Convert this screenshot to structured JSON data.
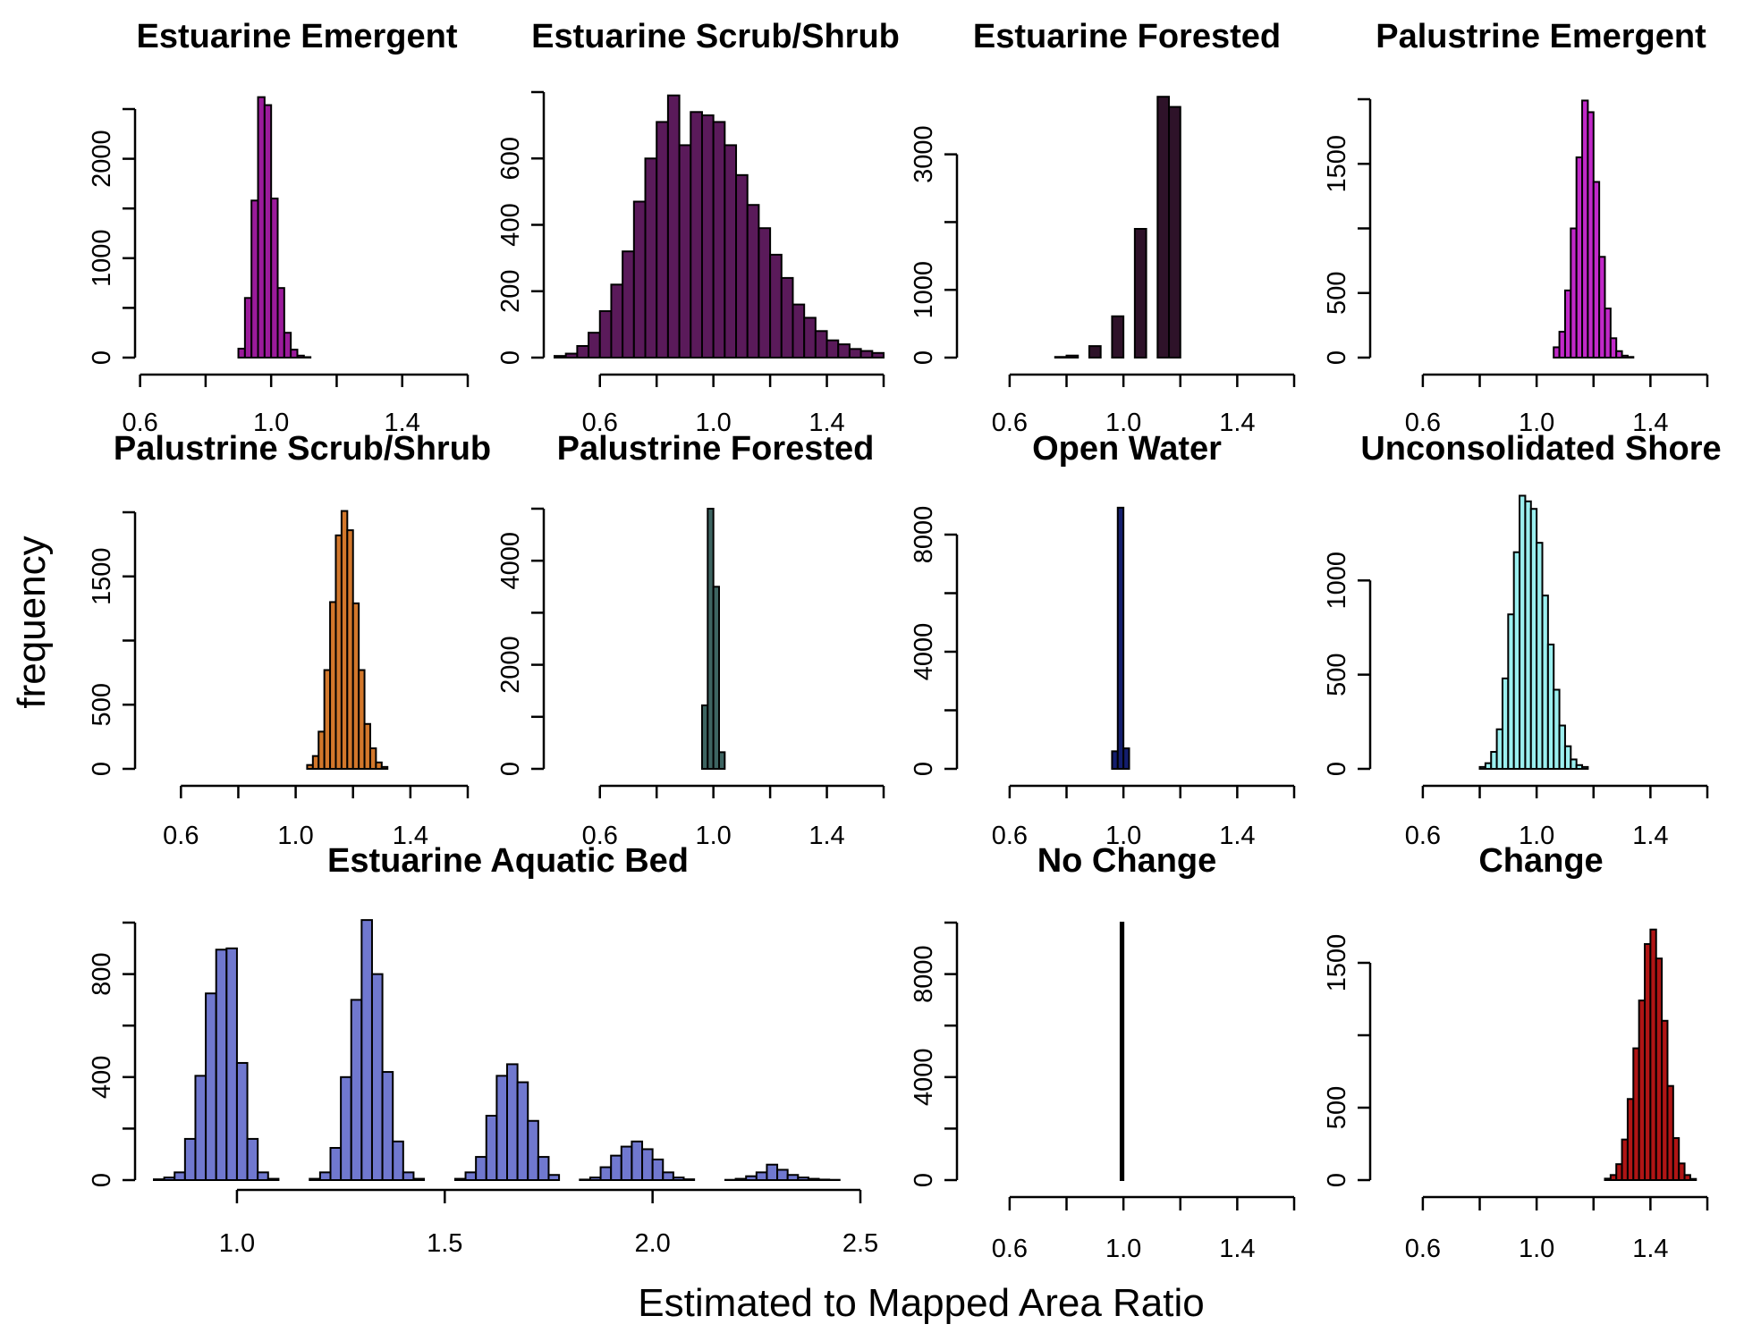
{
  "figure": {
    "ylabel": "frequency",
    "xlabel": "Estimated to Mapped Area Ratio"
  },
  "chart_data": [
    {
      "type": "bar",
      "title": "Estuarine Emergent",
      "color": "#9B1B9B",
      "bin_width": 0.02,
      "x_start": 0.44,
      "xlim": [
        0.5,
        1.6
      ],
      "xticks": [
        0.6,
        0.8,
        1.0,
        1.2,
        1.4,
        1.6
      ],
      "xtick_labels": [
        "0.6",
        "1.0",
        "1.4"
      ],
      "xtick_label_values": [
        0.6,
        1.0,
        1.4
      ],
      "ylim": [
        0,
        2500
      ],
      "yticks": [
        0,
        500,
        1000,
        1500,
        2000,
        2500
      ],
      "ytick_labels": [
        "0",
        "1000",
        "2000"
      ],
      "ytick_label_values": [
        0,
        1000,
        2000
      ],
      "values": [
        0,
        0,
        0,
        0,
        0,
        0,
        0,
        0,
        0,
        0,
        0,
        0,
        0,
        0,
        0,
        0,
        0,
        0,
        0,
        0,
        0,
        0,
        0,
        90,
        600,
        1580,
        2620,
        2540,
        1600,
        700,
        250,
        80,
        20,
        5,
        0,
        0,
        0,
        0,
        0,
        0,
        0,
        0,
        0,
        0,
        0,
        0,
        0,
        0,
        0,
        0,
        0,
        0,
        0,
        0,
        0,
        0,
        0,
        0
      ]
    },
    {
      "type": "bar",
      "title": "Estuarine Scrub/Shrub",
      "color": "#5A1A5A",
      "bin_width": 0.04,
      "x_start": 0.44,
      "xlim": [
        0.44,
        1.6
      ],
      "xticks": [
        0.6,
        0.8,
        1.0,
        1.2,
        1.4,
        1.6
      ],
      "xtick_labels": [
        "0.6",
        "1.0",
        "1.4"
      ],
      "xtick_label_values": [
        0.6,
        1.0,
        1.4
      ],
      "ylim": [
        0,
        800
      ],
      "yticks": [
        0,
        200,
        400,
        600,
        800
      ],
      "ytick_labels": [
        "0",
        "200",
        "400",
        "600"
      ],
      "ytick_label_values": [
        0,
        200,
        400,
        600
      ],
      "values": [
        5,
        12,
        35,
        75,
        140,
        220,
        320,
        470,
        600,
        710,
        790,
        640,
        740,
        730,
        710,
        640,
        550,
        460,
        390,
        310,
        240,
        160,
        120,
        80,
        52,
        40,
        26,
        20,
        14,
        10,
        6,
        4,
        2,
        1,
        1,
        1,
        0,
        0,
        0,
        0,
        0,
        0,
        0,
        0,
        0,
        0,
        0,
        0,
        0,
        0,
        0,
        0,
        0,
        0,
        0,
        0,
        0,
        0
      ]
    },
    {
      "type": "bar",
      "title": "Estuarine Forested",
      "color": "#2E1229",
      "bin_width": 0.04,
      "x_start": 0.44,
      "xlim": [
        0.44,
        1.6
      ],
      "xticks": [
        0.6,
        0.8,
        1.0,
        1.2,
        1.4,
        1.6
      ],
      "xtick_labels": [
        "0.6",
        "1.0",
        "1.4"
      ],
      "xtick_label_values": [
        0.6,
        1.0,
        1.4
      ],
      "ylim": [
        0,
        3800
      ],
      "yticks": [
        0,
        1000,
        2000,
        3000
      ],
      "ytick_labels": [
        "0",
        "1000",
        "3000"
      ],
      "ytick_label_values": [
        0,
        1000,
        3000
      ],
      "values": [
        0,
        0,
        0,
        0,
        0,
        0,
        0,
        0,
        10,
        30,
        0,
        170,
        0,
        610,
        0,
        1900,
        0,
        3850,
        3700,
        0,
        0,
        0,
        0,
        0,
        0,
        0,
        0,
        0,
        0,
        0,
        0,
        0,
        0,
        0,
        0,
        0,
        0,
        0,
        0,
        0,
        0,
        0,
        0,
        0,
        0,
        0,
        0,
        0,
        0,
        0,
        0,
        0,
        0,
        0,
        0,
        0,
        0,
        0
      ]
    },
    {
      "type": "bar",
      "title": "Palustrine Emergent",
      "color": "#C129C8",
      "bin_width": 0.02,
      "x_start": 0.44,
      "xlim": [
        0.5,
        1.6
      ],
      "xticks": [
        0.6,
        0.8,
        1.0,
        1.2,
        1.4,
        1.6
      ],
      "xtick_labels": [
        "0.6",
        "1.0",
        "1.4"
      ],
      "xtick_label_values": [
        0.6,
        1.0,
        1.4
      ],
      "ylim": [
        0,
        2000
      ],
      "yticks": [
        0,
        500,
        1000,
        1500,
        2000
      ],
      "ytick_labels": [
        "0",
        "500",
        "1500"
      ],
      "ytick_label_values": [
        0,
        500,
        1500
      ],
      "values": [
        0,
        0,
        0,
        0,
        0,
        0,
        0,
        0,
        0,
        0,
        0,
        0,
        0,
        0,
        0,
        0,
        0,
        0,
        0,
        0,
        0,
        0,
        0,
        0,
        0,
        0,
        0,
        0,
        0,
        0,
        0,
        80,
        200,
        520,
        1000,
        1550,
        1990,
        1900,
        1360,
        780,
        380,
        150,
        50,
        15,
        5,
        0,
        0,
        0,
        0,
        0,
        0,
        0,
        0,
        0,
        0,
        0,
        0,
        0
      ]
    },
    {
      "type": "bar",
      "title": "Palustrine Scrub/Shrub",
      "color": "#D2772B",
      "bin_width": 0.02,
      "x_start": 0.44,
      "xlim": [
        0.5,
        1.6
      ],
      "xticks": [
        0.6,
        0.8,
        1.0,
        1.2,
        1.4,
        1.6
      ],
      "xtick_labels": [
        "0.6",
        "1.0",
        "1.4"
      ],
      "xtick_label_values": [
        0.6,
        1.0,
        1.4
      ],
      "ylim": [
        0,
        2000
      ],
      "yticks": [
        0,
        500,
        1000,
        1500,
        2000
      ],
      "ytick_labels": [
        "0",
        "500",
        "1500"
      ],
      "ytick_label_values": [
        0,
        500,
        1500
      ],
      "values": [
        0,
        0,
        0,
        0,
        0,
        0,
        0,
        0,
        0,
        0,
        0,
        0,
        0,
        0,
        0,
        0,
        0,
        0,
        0,
        0,
        0,
        0,
        0,
        0,
        0,
        0,
        0,
        0,
        0,
        0,
        30,
        100,
        290,
        770,
        1300,
        1820,
        2010,
        1860,
        1290,
        770,
        350,
        160,
        50,
        15,
        0,
        0,
        0,
        0,
        0,
        0,
        0,
        0,
        0,
        0,
        0,
        0,
        0,
        0
      ]
    },
    {
      "type": "bar",
      "title": "Palustrine Forested",
      "color": "#3D6461",
      "bin_width": 0.02,
      "x_start": 0.44,
      "xlim": [
        0.44,
        1.6
      ],
      "xticks": [
        0.6,
        0.8,
        1.0,
        1.2,
        1.4,
        1.6
      ],
      "xtick_labels": [
        "0.6",
        "1.0",
        "1.4"
      ],
      "xtick_label_values": [
        0.6,
        1.0,
        1.4
      ],
      "ylim": [
        0,
        5000
      ],
      "yticks": [
        0,
        1000,
        2000,
        3000,
        4000,
        5000
      ],
      "ytick_labels": [
        "0",
        "2000",
        "4000"
      ],
      "ytick_label_values": [
        0,
        2000,
        4000
      ],
      "values": [
        0,
        0,
        0,
        0,
        0,
        0,
        0,
        0,
        0,
        0,
        0,
        0,
        0,
        0,
        0,
        0,
        0,
        0,
        0,
        0,
        0,
        0,
        0,
        0,
        0,
        0,
        1220,
        5000,
        3500,
        320,
        0,
        0,
        0,
        0,
        0,
        0,
        0,
        0,
        0,
        0,
        0,
        0,
        0,
        0,
        0,
        0,
        0,
        0,
        0,
        0,
        0,
        0,
        0,
        0,
        0,
        0,
        0,
        0
      ]
    },
    {
      "type": "bar",
      "title": "Open Water",
      "color": "#141E6E",
      "bin_width": 0.02,
      "x_start": 0.44,
      "xlim": [
        0.44,
        1.6
      ],
      "xticks": [
        0.6,
        0.8,
        1.0,
        1.2,
        1.4,
        1.6
      ],
      "xtick_labels": [
        "0.6",
        "1.0",
        "1.4"
      ],
      "xtick_label_values": [
        0.6,
        1.0,
        1.4
      ],
      "ylim": [
        0,
        8000
      ],
      "yticks": [
        0,
        2000,
        4000,
        6000,
        8000
      ],
      "ytick_labels": [
        "0",
        "4000",
        "8000"
      ],
      "ytick_label_values": [
        0,
        4000,
        8000
      ],
      "values": [
        0,
        0,
        0,
        0,
        0,
        0,
        0,
        0,
        0,
        0,
        0,
        0,
        0,
        0,
        0,
        0,
        0,
        0,
        0,
        0,
        0,
        0,
        0,
        0,
        0,
        0,
        600,
        8920,
        700,
        0,
        0,
        0,
        0,
        0,
        0,
        0,
        0,
        0,
        0,
        0,
        0,
        0,
        0,
        0,
        0,
        0,
        0,
        0,
        0,
        0,
        0,
        0,
        0,
        0,
        0,
        0,
        0,
        0
      ]
    },
    {
      "type": "bar",
      "title": "Unconsolidated Shore",
      "color": "#9BEFEF",
      "bin_width": 0.02,
      "x_start": 0.44,
      "xlim": [
        0.5,
        1.6
      ],
      "xticks": [
        0.6,
        0.8,
        1.0,
        1.2,
        1.4,
        1.6
      ],
      "xtick_labels": [
        "0.6",
        "1.0",
        "1.4"
      ],
      "xtick_label_values": [
        0.6,
        1.0,
        1.4
      ],
      "ylim": [
        0,
        1400
      ],
      "yticks": [
        0,
        500,
        1000
      ],
      "ytick_labels": [
        "0",
        "500",
        "1000"
      ],
      "ytick_label_values": [
        0,
        500,
        1000
      ],
      "values": [
        0,
        0,
        0,
        0,
        0,
        0,
        0,
        0,
        0,
        0,
        0,
        0,
        0,
        0,
        0,
        0,
        0,
        0,
        10,
        30,
        90,
        210,
        480,
        820,
        1150,
        1450,
        1420,
        1380,
        1200,
        920,
        660,
        420,
        230,
        120,
        50,
        20,
        10,
        0,
        0,
        0,
        0,
        0,
        0,
        0,
        0,
        0,
        0,
        0,
        0,
        0,
        0,
        0,
        0,
        0,
        0,
        0,
        0,
        0
      ]
    },
    {
      "type": "bar",
      "title": "Estuarine Aquatic Bed",
      "color": "#7078CF",
      "bin_width": 0.025,
      "x_start": 0.8,
      "xlim": [
        1.0,
        2.5
      ],
      "xticks": [
        1.0,
        1.5,
        2.0,
        2.5
      ],
      "xtick_labels": [
        "1.0",
        "1.5",
        "2.0",
        "2.5"
      ],
      "xtick_label_values": [
        1.0,
        1.5,
        2.0,
        2.5
      ],
      "ylim": [
        0,
        1000
      ],
      "yticks": [
        0,
        200,
        400,
        600,
        800,
        1000
      ],
      "ytick_labels": [
        "0",
        "400",
        "800"
      ],
      "ytick_label_values": [
        0,
        400,
        800
      ],
      "values": [
        3,
        10,
        30,
        160,
        405,
        725,
        895,
        900,
        455,
        160,
        30,
        5,
        0,
        0,
        0,
        5,
        30,
        125,
        400,
        700,
        1010,
        800,
        420,
        150,
        30,
        5,
        0,
        0,
        0,
        5,
        30,
        90,
        250,
        405,
        450,
        380,
        230,
        90,
        20,
        0,
        0,
        2,
        10,
        50,
        95,
        130,
        150,
        120,
        80,
        30,
        10,
        3,
        0,
        0,
        0,
        1,
        5,
        15,
        30,
        60,
        40,
        20,
        10,
        5,
        2,
        1,
        0,
        0,
        0,
        0,
        0,
        1,
        2,
        4,
        6,
        8,
        8,
        6,
        4,
        2,
        1,
        0,
        0,
        0,
        0,
        0,
        0,
        0,
        0,
        0
      ]
    },
    {
      "type": "bar",
      "title": "No Change",
      "color": "#000000",
      "bin_width": 0.01,
      "x_start": 0.44,
      "xlim": [
        0.44,
        1.6
      ],
      "xticks": [
        0.6,
        0.8,
        1.0,
        1.2,
        1.4,
        1.6
      ],
      "xtick_labels": [
        "0.6",
        "1.0",
        "1.4"
      ],
      "xtick_label_values": [
        0.6,
        1.0,
        1.4
      ],
      "ylim": [
        0,
        10000
      ],
      "yticks": [
        0,
        2000,
        4000,
        6000,
        8000,
        10000
      ],
      "ytick_labels": [
        "0",
        "4000",
        "8000"
      ],
      "ytick_label_values": [
        0,
        4000,
        8000
      ],
      "values": [
        0,
        0,
        0,
        0,
        0,
        0,
        0,
        0,
        0,
        0,
        0,
        0,
        0,
        0,
        0,
        0,
        0,
        0,
        0,
        0,
        0,
        0,
        0,
        0,
        0,
        0,
        0,
        0,
        0,
        0,
        0,
        0,
        0,
        0,
        0,
        0,
        0,
        0,
        0,
        0,
        0,
        0,
        0,
        0,
        0,
        0,
        0,
        0,
        0,
        0,
        0,
        0,
        0,
        0,
        0,
        10000,
        0,
        0,
        0,
        0,
        0,
        0,
        0,
        0,
        0,
        0,
        0,
        0,
        0,
        0,
        0,
        0,
        0,
        0,
        0,
        0,
        0,
        0,
        0,
        0,
        0,
        0,
        0,
        0,
        0,
        0,
        0,
        0,
        0,
        0,
        0,
        0,
        0,
        0,
        0,
        0,
        0,
        0,
        0,
        0,
        0,
        0,
        0,
        0,
        0,
        0,
        0,
        0,
        0,
        0,
        0,
        0,
        0,
        0,
        0,
        0
      ]
    },
    {
      "type": "bar",
      "title": "Change",
      "color": "#B01515",
      "bin_width": 0.02,
      "x_start": 0.44,
      "xlim": [
        0.5,
        1.6
      ],
      "xticks": [
        0.6,
        0.8,
        1.0,
        1.2,
        1.4,
        1.6
      ],
      "xtick_labels": [
        "0.6",
        "1.0",
        "1.4"
      ],
      "xtick_label_values": [
        0.6,
        1.0,
        1.4
      ],
      "ylim": [
        0,
        1500
      ],
      "yticks": [
        0,
        500,
        1000,
        1500
      ],
      "ytick_labels": [
        "0",
        "500",
        "1500"
      ],
      "ytick_label_values": [
        0,
        500,
        1500
      ],
      "values": [
        0,
        0,
        0,
        0,
        0,
        0,
        0,
        0,
        0,
        0,
        0,
        0,
        0,
        0,
        0,
        0,
        0,
        0,
        0,
        0,
        0,
        0,
        0,
        0,
        0,
        0,
        0,
        0,
        0,
        0,
        0,
        0,
        0,
        0,
        0,
        0,
        0,
        0,
        0,
        0,
        10,
        35,
        110,
        280,
        560,
        910,
        1240,
        1630,
        1730,
        1530,
        1100,
        650,
        290,
        115,
        35,
        8,
        0,
        0
      ]
    }
  ]
}
